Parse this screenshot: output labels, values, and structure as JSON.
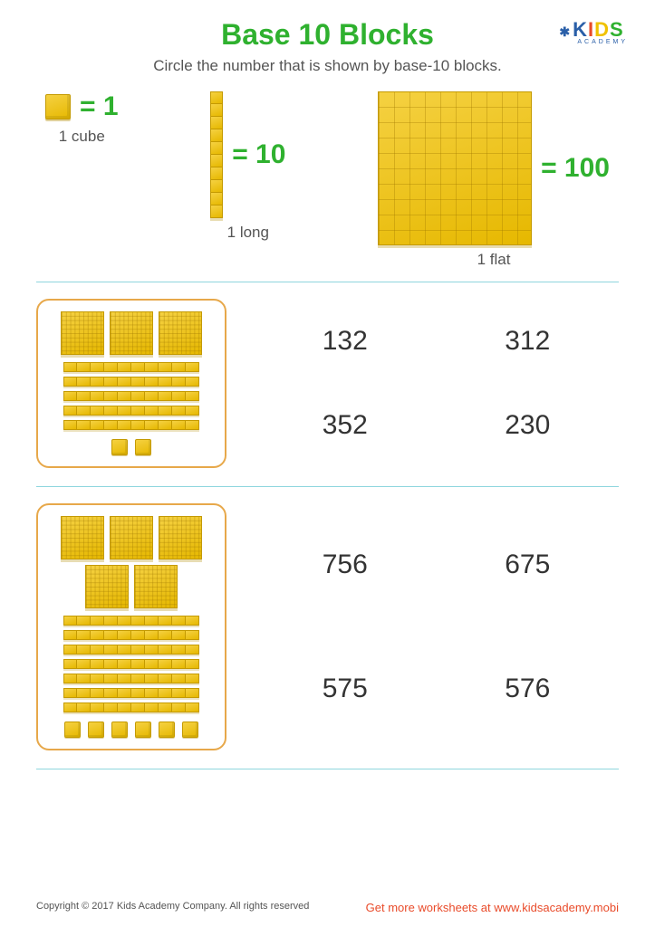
{
  "title": "Base 10 Blocks",
  "subtitle": "Circle the number that is shown by base-10 blocks.",
  "logo": {
    "letters": [
      "K",
      "I",
      "D",
      "S"
    ],
    "sub": "ACADEMY"
  },
  "colors": {
    "title_green": "#2fb12f",
    "block_fill": "#f5d142",
    "block_edge": "#c49a00",
    "box_border": "#e7a84a",
    "separator": "#8fd6de",
    "footer_link": "#e94b2a",
    "logo_k": "#2a5fa8",
    "logo_i": "#e94b2a",
    "logo_d": "#f0c200",
    "logo_s": "#2fb12f"
  },
  "legend": {
    "cube": {
      "value": "= 1",
      "label": "1 cube"
    },
    "long": {
      "value": "= 10",
      "label": "1 long",
      "segments": 10
    },
    "flat": {
      "value": "= 100",
      "label": "1 flat"
    }
  },
  "problems": [
    {
      "flats": 3,
      "longs": 5,
      "cubes": 2,
      "answers": [
        "132",
        "312",
        "352",
        "230"
      ]
    },
    {
      "flats": 5,
      "longs": 7,
      "cubes": 6,
      "answers": [
        "756",
        "675",
        "575",
        "576"
      ]
    }
  ],
  "footer": {
    "copyright": "Copyright © 2017 Kids Academy Company. All rights reserved",
    "link": "Get more worksheets at www.kidsacademy.mobi"
  }
}
